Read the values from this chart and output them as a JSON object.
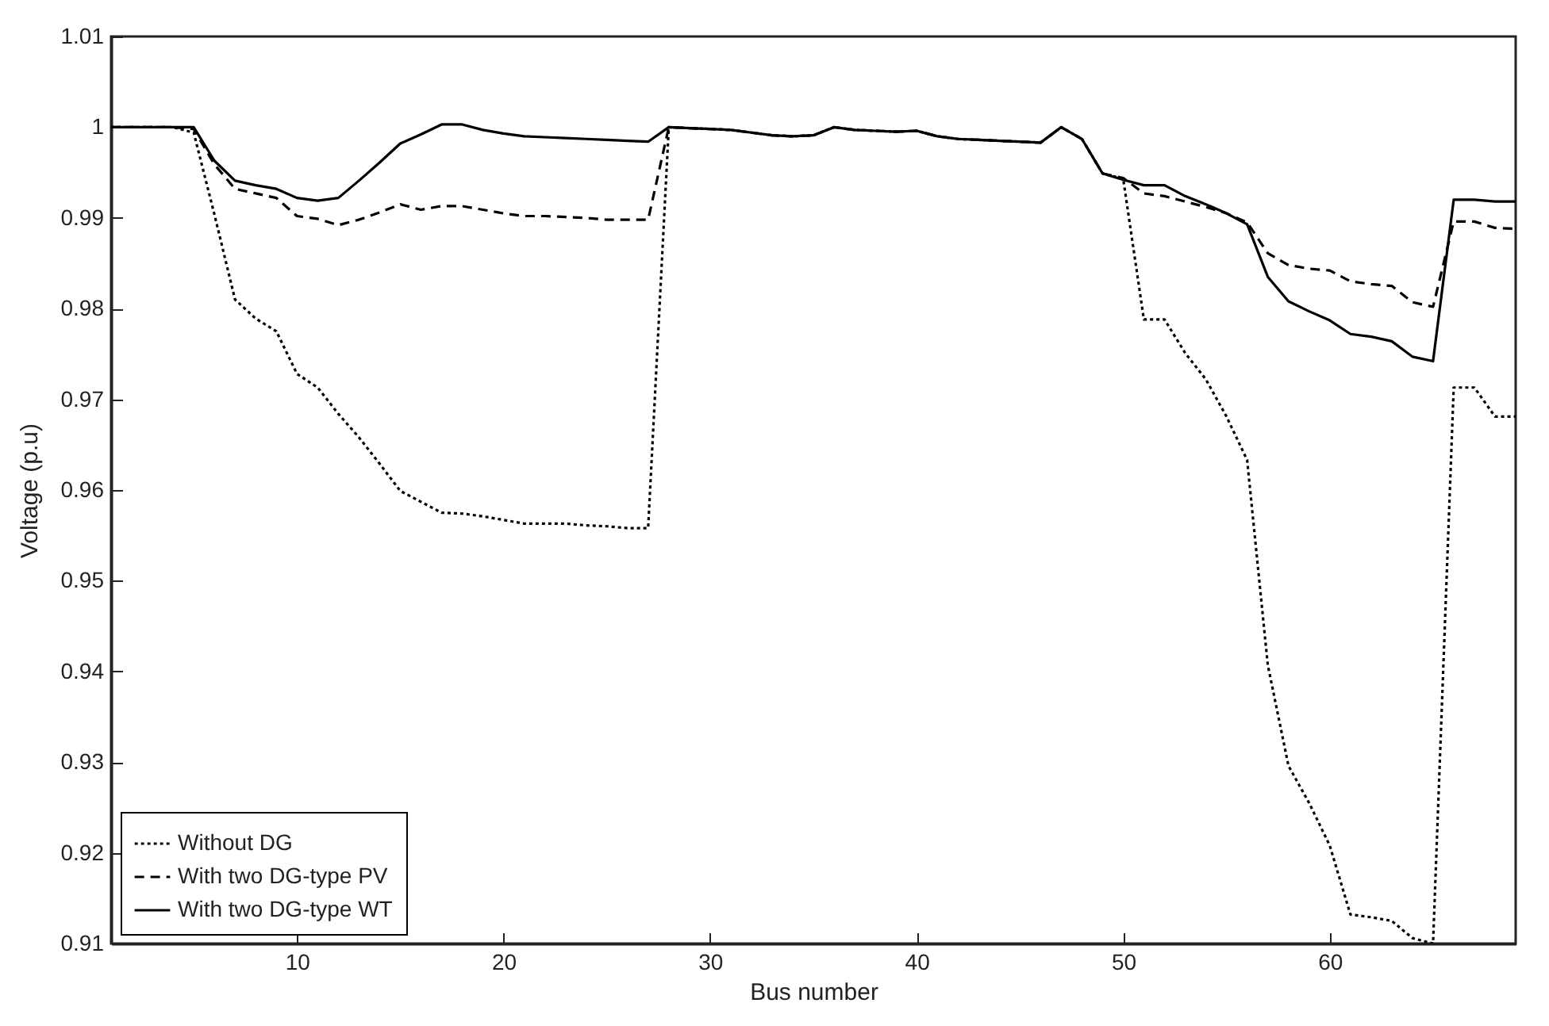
{
  "chart_data": {
    "type": "line",
    "xlabel": "Bus number",
    "ylabel": "Voltage (p.u)",
    "x": [
      1,
      2,
      3,
      4,
      5,
      6,
      7,
      8,
      9,
      10,
      11,
      12,
      13,
      14,
      15,
      16,
      17,
      18,
      19,
      20,
      21,
      22,
      23,
      24,
      25,
      26,
      27,
      28,
      29,
      30,
      31,
      32,
      33,
      34,
      35,
      36,
      37,
      38,
      39,
      40,
      41,
      42,
      43,
      44,
      45,
      46,
      47,
      48,
      49,
      50,
      51,
      52,
      53,
      54,
      55,
      56,
      57,
      58,
      59,
      60,
      61,
      62,
      63,
      64,
      65,
      66,
      67,
      68,
      69
    ],
    "series": [
      {
        "name": "Without DG",
        "color": "#000000",
        "line_style": "dotted",
        "values": [
          1,
          1,
          1,
          1,
          0.9994,
          0.9904,
          0.981,
          0.9789,
          0.9775,
          0.9728,
          0.9713,
          0.9684,
          0.9658,
          0.9629,
          0.9599,
          0.9587,
          0.9575,
          0.9574,
          0.9571,
          0.9567,
          0.9563,
          0.9563,
          0.9563,
          0.9561,
          0.956,
          0.9558,
          0.9558,
          1,
          0.9999,
          0.9998,
          0.9997,
          0.9994,
          0.9991,
          0.999,
          0.9991,
          1,
          0.9997,
          0.9996,
          0.9995,
          0.9996,
          0.999,
          0.9987,
          0.9986,
          0.9985,
          0.9984,
          0.9983,
          1,
          0.9987,
          0.9949,
          0.9943,
          0.9788,
          0.9788,
          0.9751,
          0.9722,
          0.9681,
          0.9633,
          0.9407,
          0.9296,
          0.9255,
          0.9208,
          0.9132,
          0.9129,
          0.9125,
          0.9106,
          0.91,
          0.9713,
          0.9713,
          0.9681,
          0.9681
        ]
      },
      {
        "name": "With two DG-type PV",
        "color": "#000000",
        "line_style": "dashed",
        "values": [
          1,
          1,
          1,
          1,
          0.9998,
          0.9959,
          0.9932,
          0.9927,
          0.9922,
          0.9902,
          0.9899,
          0.9892,
          0.9898,
          0.9906,
          0.9915,
          0.9909,
          0.9913,
          0.9913,
          0.9909,
          0.9905,
          0.9902,
          0.9902,
          0.9901,
          0.99,
          0.9898,
          0.9898,
          0.9898,
          1,
          0.9999,
          0.9998,
          0.9997,
          0.9994,
          0.9991,
          0.999,
          0.9991,
          1,
          0.9997,
          0.9996,
          0.9995,
          0.9996,
          0.999,
          0.9987,
          0.9986,
          0.9985,
          0.9984,
          0.9983,
          1,
          0.9987,
          0.9949,
          0.9944,
          0.9927,
          0.9924,
          0.9918,
          0.9912,
          0.9905,
          0.9895,
          0.9861,
          0.9848,
          0.9844,
          0.9842,
          0.983,
          0.9827,
          0.9825,
          0.9807,
          0.9802,
          0.9896,
          0.9896,
          0.9889,
          0.9888
        ]
      },
      {
        "name": "With two DG-type WT",
        "color": "#000000",
        "line_style": "solid",
        "values": [
          1,
          1,
          1,
          1,
          1,
          0.9963,
          0.9941,
          0.9936,
          0.9932,
          0.9922,
          0.9919,
          0.9922,
          0.9941,
          0.9961,
          0.9982,
          0.9992,
          1.0003,
          1.0003,
          0.9997,
          0.9993,
          0.999,
          0.9989,
          0.9988,
          0.9987,
          0.9986,
          0.9985,
          0.9984,
          1,
          0.9999,
          0.9998,
          0.9997,
          0.9994,
          0.9991,
          0.999,
          0.9991,
          1,
          0.9997,
          0.9996,
          0.9995,
          0.9996,
          0.999,
          0.9987,
          0.9986,
          0.9985,
          0.9984,
          0.9983,
          1,
          0.9987,
          0.9949,
          0.9942,
          0.9936,
          0.9936,
          0.9924,
          0.9915,
          0.9905,
          0.9893,
          0.9835,
          0.9808,
          0.9797,
          0.9787,
          0.9772,
          0.9769,
          0.9764,
          0.9747,
          0.9742,
          0.992,
          0.992,
          0.9918,
          0.9918
        ]
      }
    ],
    "xlim": [
      1,
      69
    ],
    "xticks": [
      10,
      20,
      30,
      40,
      50,
      60
    ],
    "ylim": [
      0.91,
      1.01
    ],
    "yticks": [
      0.91,
      0.92,
      0.93,
      0.94,
      0.95,
      0.96,
      0.97,
      0.98,
      0.99,
      1,
      1.01
    ],
    "grid": false,
    "legend": "bottom left",
    "marker": "none"
  }
}
